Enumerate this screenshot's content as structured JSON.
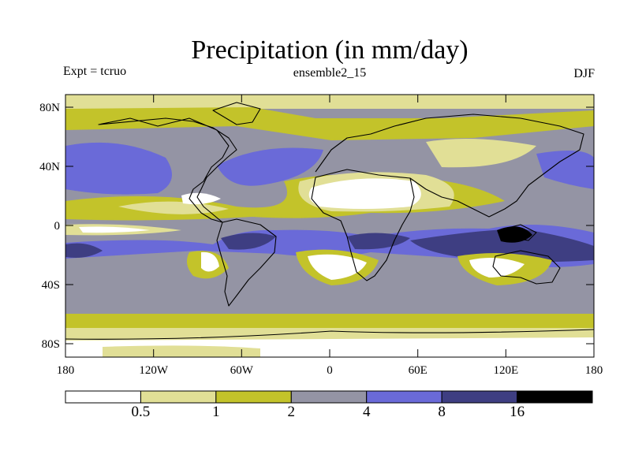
{
  "title": "Precipitation (in mm/day)",
  "experiment": "Expt = tcruo",
  "ensemble": "ensemble2_15",
  "season": "DJF",
  "y_axis": {
    "ticks": [
      "80N",
      "40N",
      "0",
      "40S",
      "80S"
    ]
  },
  "x_axis": {
    "ticks": [
      "180",
      "120W",
      "60W",
      "0",
      "60E",
      "120E",
      "180"
    ]
  },
  "colorbar": {
    "bins": [
      {
        "range": "< 0.5",
        "color": "#ffffff"
      },
      {
        "range": "0.5-1",
        "color": "#e1df96"
      },
      {
        "range": "1-2",
        "color": "#c3c32a"
      },
      {
        "range": "2-4",
        "color": "#9494a4"
      },
      {
        "range": "4-8",
        "color": "#6a6ad8"
      },
      {
        "range": "8-16",
        "color": "#3e3e82"
      },
      {
        "range": "> 16",
        "color": "#000000"
      }
    ],
    "labels": [
      "0.5",
      "1",
      "2",
      "4",
      "8",
      "16"
    ]
  }
}
